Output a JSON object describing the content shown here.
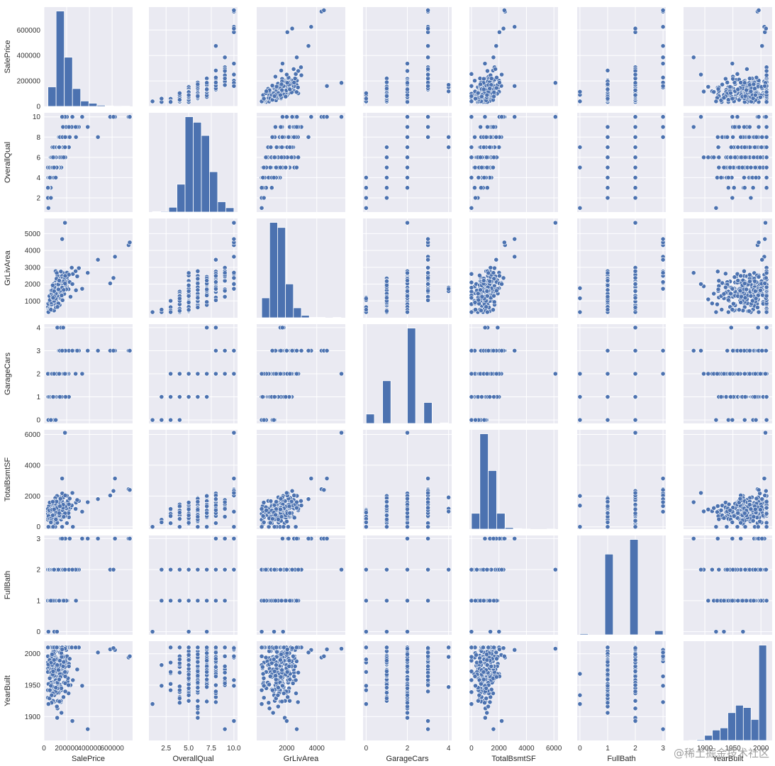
{
  "colors": {
    "panel_bg": "#eaeaf2",
    "grid": "#ffffff",
    "marker": "#4c72b0",
    "bar": "#4c72b0"
  },
  "watermark": "@稀土掘金技术社区",
  "chart_data": {
    "type": "scatter",
    "variables": [
      "SalePrice",
      "OverallQual",
      "GrLivArea",
      "GarageCars",
      "TotalBsmtSF",
      "FullBath",
      "YearBuilt"
    ],
    "axis_labels": [
      "SalePrice",
      "OverallQual",
      "GrLivArea",
      "GarageCars",
      "TotalBsmtSF",
      "FullBath",
      "YearBuilt"
    ],
    "ranges": [
      [
        0,
        780000
      ],
      [
        0.6,
        10.4
      ],
      [
        0,
        5900
      ],
      [
        -0.15,
        4.15
      ],
      [
        -150,
        6300
      ],
      [
        -0.1,
        3.1
      ],
      [
        1862,
        2020
      ]
    ],
    "x_ticks": [
      {
        "values": [
          0,
          200000,
          400000,
          600000
        ],
        "labels": [
          "0",
          "200000",
          "400000",
          "600000"
        ]
      },
      {
        "values": [
          2.5,
          5.0,
          7.5,
          10.0
        ],
        "labels": [
          "2.5",
          "5.0",
          "7.5",
          "10.0"
        ]
      },
      {
        "values": [
          2000,
          4000
        ],
        "labels": [
          "2000",
          "4000"
        ]
      },
      {
        "values": [
          0,
          2,
          4
        ],
        "labels": [
          "0",
          "2",
          "4"
        ]
      },
      {
        "values": [
          0,
          2000,
          4000,
          6000
        ],
        "labels": [
          "0",
          "2000",
          "4000",
          "6000"
        ]
      },
      {
        "values": [
          0,
          1,
          2,
          3
        ],
        "labels": [
          "0",
          "1",
          "2",
          "3"
        ]
      },
      {
        "values": [
          1900,
          1950,
          2000
        ],
        "labels": [
          "1900",
          "1950",
          "2000"
        ]
      }
    ],
    "y_ticks": [
      {
        "values": [
          0,
          200000,
          400000,
          600000
        ],
        "labels": [
          "0",
          "200000",
          "400000",
          "600000"
        ]
      },
      {
        "values": [
          2,
          4,
          6,
          8,
          10
        ],
        "labels": [
          "2",
          "4",
          "6",
          "8",
          "10"
        ]
      },
      {
        "values": [
          1000,
          2000,
          3000,
          4000,
          5000
        ],
        "labels": [
          "1000",
          "2000",
          "3000",
          "4000",
          "5000"
        ]
      },
      {
        "values": [
          0,
          1,
          2,
          3,
          4
        ],
        "labels": [
          "0",
          "1",
          "2",
          "3",
          "4"
        ]
      },
      {
        "values": [
          0,
          2000,
          4000,
          6000
        ],
        "labels": [
          "0",
          "2000",
          "4000",
          "6000"
        ]
      },
      {
        "values": [
          0,
          1,
          2,
          3
        ],
        "labels": [
          "0",
          "1",
          "2",
          "3"
        ]
      },
      {
        "values": [
          1900,
          1950,
          2000
        ],
        "labels": [
          "1900",
          "1950",
          "2000"
        ]
      }
    ],
    "histograms": [
      {
        "bins": [
          34900,
          106910,
          178920,
          250930,
          322940,
          394950,
          466960,
          538970,
          610980,
          682990,
          755000
        ],
        "counts": [
          148,
          723,
          373,
          135,
          41,
          24,
          9,
          4,
          1,
          2
        ]
      },
      {
        "bins": [
          1,
          1.9,
          2.8,
          3.7,
          4.6,
          5.5,
          6.4,
          7.3,
          8.2,
          9.1,
          10
        ],
        "counts": [
          2,
          3,
          20,
          116,
          397,
          374,
          319,
          168,
          43,
          18
        ]
      },
      {
        "bins": [
          334,
          862,
          1390,
          1918,
          2446,
          2974,
          3502,
          4030,
          4558,
          5086,
          5614
        ],
        "counts": [
          114,
          547,
          518,
          194,
          57,
          14,
          2,
          2,
          0,
          2
        ]
      },
      {
        "bins": [
          0,
          0.4,
          0.8,
          1.2,
          1.6,
          2,
          2.4,
          2.8,
          3.2,
          3.6,
          4
        ],
        "counts": [
          81,
          0,
          369,
          0,
          0,
          824,
          0,
          181,
          0,
          5
        ]
      },
      {
        "bins": [
          0,
          611,
          1222,
          1833,
          2444,
          3055,
          3666,
          4277,
          4888,
          5499,
          6110
        ],
        "counts": [
          123,
          741,
          455,
          123,
          12,
          4,
          1,
          0,
          0,
          1
        ]
      },
      {
        "bins": [
          0,
          0.3,
          0.6,
          0.9,
          1.2,
          1.5,
          1.8,
          2.1,
          2.4,
          2.7,
          3
        ],
        "counts": [
          9,
          0,
          0,
          650,
          0,
          0,
          768,
          0,
          0,
          33
        ]
      },
      {
        "bins": [
          1872,
          1885.8,
          1899.6,
          1913.4,
          1927.2,
          1941,
          1954.8,
          1968.6,
          1982.4,
          1996.2,
          2010
        ],
        "counts": [
          1,
          6,
          31,
          63,
          76,
          168,
          213,
          199,
          127,
          576
        ]
      }
    ],
    "n_points": 260
  }
}
